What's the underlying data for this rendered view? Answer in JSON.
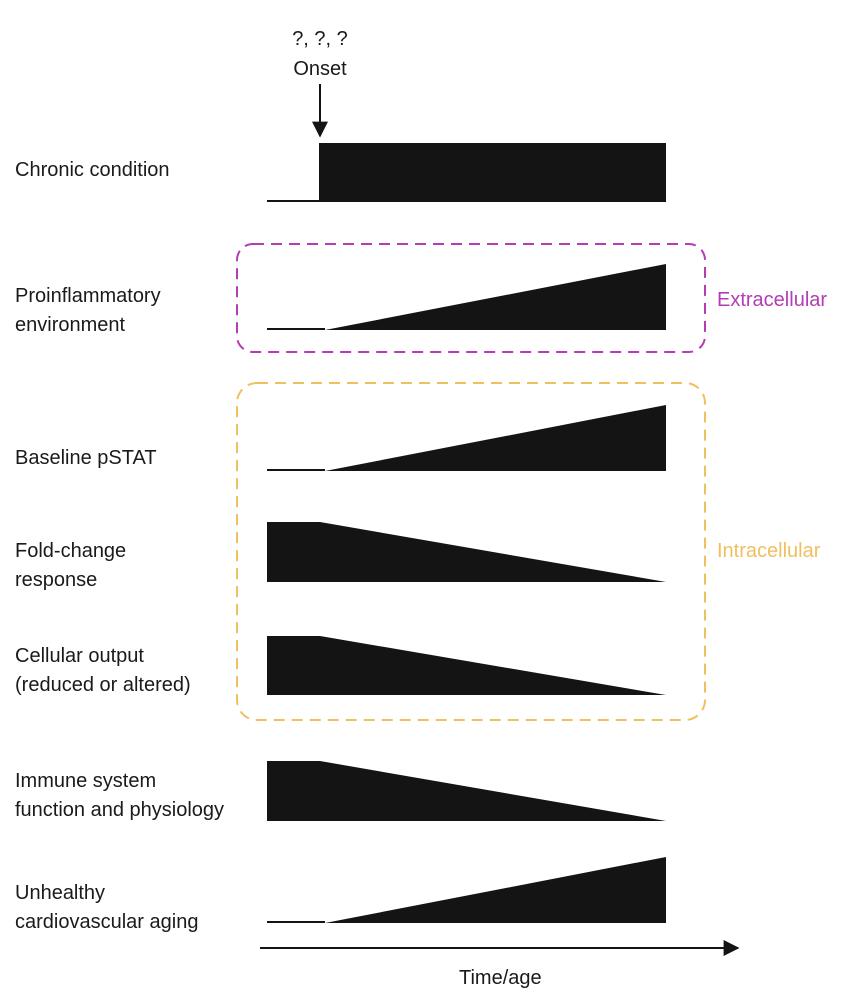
{
  "onset": {
    "question": "?, ?, ?",
    "label": "Onset"
  },
  "rows": [
    {
      "label_lines": [
        "Chronic condition"
      ],
      "shape": "step-up"
    },
    {
      "label_lines": [
        "Proinflammatory",
        "environment"
      ],
      "shape": "ramp-up"
    },
    {
      "label_lines": [
        "Baseline pSTAT"
      ],
      "shape": "ramp-up"
    },
    {
      "label_lines": [
        "Fold-change",
        "response"
      ],
      "shape": "ramp-down"
    },
    {
      "label_lines": [
        "Cellular output",
        "(reduced or altered)"
      ],
      "shape": "ramp-down"
    },
    {
      "label_lines": [
        "Immune system",
        "function and physiology"
      ],
      "shape": "ramp-down"
    },
    {
      "label_lines": [
        "Unhealthy",
        "cardiovascular aging"
      ],
      "shape": "ramp-up"
    }
  ],
  "regions": {
    "extracellular": {
      "label": "Extracellular",
      "color": "#b43cb4"
    },
    "intracellular": {
      "label": "Intracellular",
      "color": "#f0c060"
    }
  },
  "axis": {
    "label": "Time/age"
  },
  "colors": {
    "fill": "#141414",
    "text": "#1a1a1a"
  }
}
